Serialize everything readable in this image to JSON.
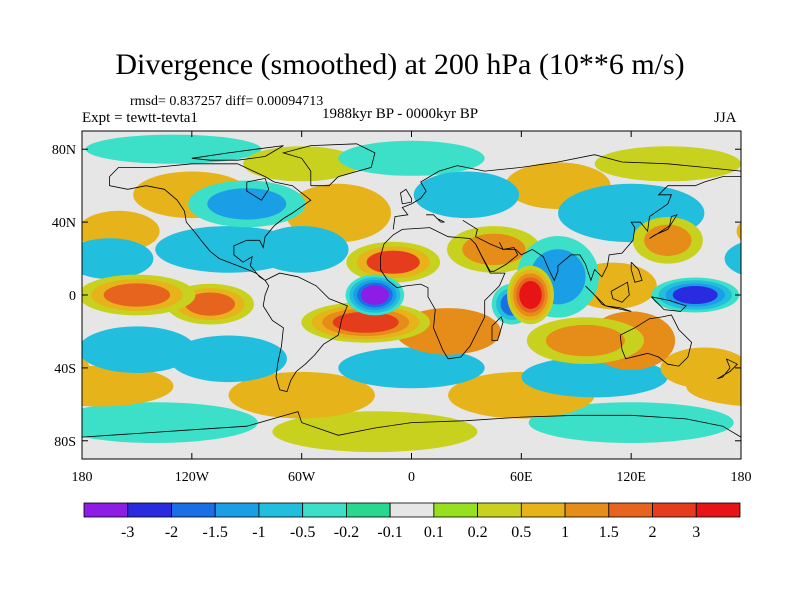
{
  "title": "Divergence (smoothed) at 200 hPa (10**6 m/s)",
  "stats": "rmsd= 0.837257 diff= 0.00094713",
  "experiment": "Expt = tewtt-tevta1",
  "period": "1988kyr BP - 0000kyr BP",
  "season": "JJA",
  "lat_ticks": [
    "80N",
    "40N",
    "0",
    "40S",
    "80S"
  ],
  "lon_ticks": [
    "180",
    "120W",
    "60W",
    "0",
    "60E",
    "120E",
    "180"
  ],
  "colorbar": {
    "labels": [
      "-3",
      "-2",
      "-1.5",
      "-1",
      "-0.5",
      "-0.2",
      "-0.1",
      "0.1",
      "0.2",
      "0.5",
      "1",
      "1.5",
      "2",
      "3"
    ],
    "colors": [
      "#8c1ce6",
      "#2a2ae0",
      "#1a6ee6",
      "#1a9ee6",
      "#22bede",
      "#3ce0c8",
      "#28d88e",
      "#e6e6e6",
      "#96e020",
      "#c8d21e",
      "#e6b41a",
      "#e68c18",
      "#e6641e",
      "#e63c1e",
      "#e61414"
    ]
  },
  "field_blobs": [
    {
      "lon": -20,
      "lat": 0,
      "value": -3.5,
      "spread_lon": 10,
      "spread_lat": 7
    },
    {
      "lon": -10,
      "lat": 18,
      "value": 2.2,
      "spread_lon": 16,
      "spread_lat": 7
    },
    {
      "lon": -25,
      "lat": -15,
      "value": 2.3,
      "spread_lon": 22,
      "spread_lat": 7
    },
    {
      "lon": 20,
      "lat": -20,
      "value": 1.2,
      "spread_lon": 18,
      "spread_lat": 8
    },
    {
      "lon": 65,
      "lat": 0,
      "value": 3.0,
      "spread_lon": 8,
      "spread_lat": 10
    },
    {
      "lon": 55,
      "lat": -5,
      "value": -2.0,
      "spread_lon": 7,
      "spread_lat": 7
    },
    {
      "lon": 45,
      "lat": 25,
      "value": 1.3,
      "spread_lon": 16,
      "spread_lat": 8
    },
    {
      "lon": 80,
      "lat": 10,
      "value": -1.4,
      "spread_lon": 14,
      "spread_lat": 14
    },
    {
      "lon": 95,
      "lat": -25,
      "value": 1.3,
      "spread_lon": 20,
      "spread_lat": 8
    },
    {
      "lon": 120,
      "lat": -25,
      "value": 1.0,
      "spread_lon": 15,
      "spread_lat": 10
    },
    {
      "lon": 155,
      "lat": 0,
      "value": -2.3,
      "spread_lon": 15,
      "spread_lat": 6
    },
    {
      "lon": 110,
      "lat": 5,
      "value": 0.8,
      "spread_lon": 15,
      "spread_lat": 8
    },
    {
      "lon": 140,
      "lat": 30,
      "value": 1.3,
      "spread_lon": 12,
      "spread_lat": 8
    },
    {
      "lon": 120,
      "lat": 45,
      "value": -0.8,
      "spread_lon": 25,
      "spread_lat": 10
    },
    {
      "lon": -150,
      "lat": 0,
      "value": 1.8,
      "spread_lon": 20,
      "spread_lat": 7
    },
    {
      "lon": -110,
      "lat": -5,
      "value": 1.7,
      "spread_lon": 15,
      "spread_lat": 7
    },
    {
      "lon": -165,
      "lat": 20,
      "value": -0.9,
      "spread_lon": 15,
      "spread_lat": 7
    },
    {
      "lon": -100,
      "lat": 25,
      "value": -1.0,
      "spread_lon": 25,
      "spread_lat": 8
    },
    {
      "lon": -90,
      "lat": 50,
      "value": -1.3,
      "spread_lon": 20,
      "spread_lat": 8
    },
    {
      "lon": -40,
      "lat": 45,
      "value": 0.6,
      "spread_lon": 18,
      "spread_lat": 10
    },
    {
      "lon": -60,
      "lat": 25,
      "value": -0.9,
      "spread_lon": 16,
      "spread_lat": 8
    },
    {
      "lon": -160,
      "lat": 35,
      "value": 0.8,
      "spread_lon": 14,
      "spread_lat": 7
    },
    {
      "lon": -120,
      "lat": 55,
      "value": 0.5,
      "spread_lon": 20,
      "spread_lat": 8
    },
    {
      "lon": 30,
      "lat": 55,
      "value": -0.8,
      "spread_lon": 18,
      "spread_lat": 8
    },
    {
      "lon": 80,
      "lat": 60,
      "value": 0.7,
      "spread_lon": 18,
      "spread_lat": 8
    },
    {
      "lon": -150,
      "lat": -30,
      "value": -1.0,
      "spread_lon": 20,
      "spread_lat": 8
    },
    {
      "lon": -100,
      "lat": -35,
      "value": -0.6,
      "spread_lon": 20,
      "spread_lat": 8
    },
    {
      "lon": 0,
      "lat": -40,
      "value": -0.8,
      "spread_lon": 25,
      "spread_lat": 7
    },
    {
      "lon": 100,
      "lat": -45,
      "value": -0.7,
      "spread_lon": 25,
      "spread_lat": 7
    },
    {
      "lon": -170,
      "lat": -50,
      "value": 0.6,
      "spread_lon": 25,
      "spread_lat": 7
    },
    {
      "lon": 160,
      "lat": -40,
      "value": 0.7,
      "spread_lon": 15,
      "spread_lat": 7
    },
    {
      "lon": -60,
      "lat": -55,
      "value": 0.5,
      "spread_lon": 25,
      "spread_lat": 8
    },
    {
      "lon": 60,
      "lat": -55,
      "value": 0.6,
      "spread_lon": 25,
      "spread_lat": 8
    },
    {
      "lon": -140,
      "lat": -70,
      "value": -0.4,
      "spread_lon": 35,
      "spread_lat": 7
    },
    {
      "lon": -20,
      "lat": -75,
      "value": 0.4,
      "spread_lon": 35,
      "spread_lat": 7
    },
    {
      "lon": 120,
      "lat": -70,
      "value": -0.4,
      "spread_lon": 35,
      "spread_lat": 7
    },
    {
      "lon": -60,
      "lat": 72,
      "value": 0.4,
      "spread_lon": 20,
      "spread_lat": 6
    },
    {
      "lon": 0,
      "lat": 75,
      "value": -0.4,
      "spread_lon": 25,
      "spread_lat": 6
    },
    {
      "lon": 140,
      "lat": 72,
      "value": 0.4,
      "spread_lon": 25,
      "spread_lat": 6
    },
    {
      "lon": -130,
      "lat": 80,
      "value": -0.3,
      "spread_lon": 30,
      "spread_lat": 5
    }
  ]
}
